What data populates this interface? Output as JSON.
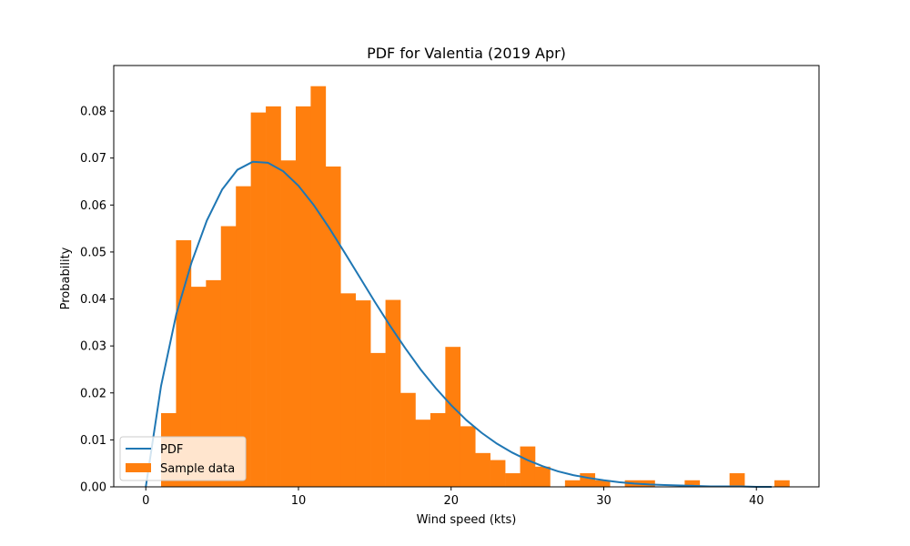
{
  "chart_data": {
    "type": "bar",
    "title": "PDF for Valentia (2019 Apr)",
    "xlabel": "Wind speed (kts)",
    "ylabel": "Probability",
    "xlim": [
      -2.1,
      44.1
    ],
    "ylim": [
      0,
      0.0897
    ],
    "xticks": [
      0,
      10,
      20,
      30,
      40
    ],
    "yticks": [
      0.0,
      0.01,
      0.02,
      0.03,
      0.04,
      0.05,
      0.06,
      0.07,
      0.08
    ],
    "ytick_labels": [
      "0.00",
      "0.01",
      "0.02",
      "0.03",
      "0.04",
      "0.05",
      "0.06",
      "0.07",
      "0.08"
    ],
    "grid": false,
    "legend_position": "lower-left",
    "colors": {
      "histogram": "#ff7f0e",
      "pdf_line": "#1f77b4"
    },
    "series": [
      {
        "name": "Sample data",
        "type": "histogram",
        "bin_width": 0.98,
        "bin_starts": [
          1.0,
          1.98,
          2.96,
          3.94,
          4.92,
          5.9,
          6.88,
          7.86,
          8.84,
          9.82,
          10.8,
          11.78,
          12.76,
          13.74,
          14.72,
          15.7,
          16.68,
          17.66,
          18.64,
          19.62,
          20.6,
          21.58,
          22.56,
          23.54,
          24.52,
          25.5,
          26.48,
          27.46,
          28.44,
          29.42,
          30.4,
          31.38,
          32.36,
          33.34,
          34.32,
          35.3,
          36.28,
          37.26,
          38.24,
          39.22,
          40.2,
          41.18
        ],
        "values": [
          0.0157,
          0.0525,
          0.0426,
          0.044,
          0.0555,
          0.064,
          0.0797,
          0.081,
          0.0695,
          0.081,
          0.0853,
          0.0682,
          0.0412,
          0.0397,
          0.0285,
          0.0398,
          0.02,
          0.0143,
          0.0157,
          0.0298,
          0.0129,
          0.0072,
          0.0057,
          0.0029,
          0.0086,
          0.0043,
          0.0,
          0.0014,
          0.0029,
          0.0014,
          0.0,
          0.0014,
          0.0014,
          0.0,
          0.0,
          0.0014,
          0.0,
          0.0,
          0.0029,
          0.0,
          0.0,
          0.0014
        ]
      },
      {
        "name": "PDF",
        "type": "line",
        "x": [
          0,
          1,
          2,
          3,
          4,
          5,
          6,
          7,
          8,
          9,
          10,
          11,
          12,
          13,
          14,
          15,
          16,
          17,
          18,
          19,
          20,
          21,
          22,
          23,
          24,
          25,
          26,
          27,
          28,
          29,
          30,
          31,
          32,
          33,
          34,
          35,
          36,
          37,
          38,
          39,
          40,
          41
        ],
        "y": [
          0.0,
          0.0215,
          0.0368,
          0.0478,
          0.0567,
          0.0633,
          0.0675,
          0.0692,
          0.069,
          0.0672,
          0.0641,
          0.06,
          0.0552,
          0.05,
          0.0447,
          0.0394,
          0.0343,
          0.0295,
          0.025,
          0.021,
          0.0174,
          0.0142,
          0.0115,
          0.0092,
          0.0073,
          0.0057,
          0.0044,
          0.0033,
          0.0025,
          0.0019,
          0.0014,
          0.001,
          0.0007,
          0.0005,
          0.0004,
          0.0003,
          0.0002,
          0.0001,
          0.0001,
          0.0001,
          0.0,
          0.0
        ]
      }
    ]
  }
}
